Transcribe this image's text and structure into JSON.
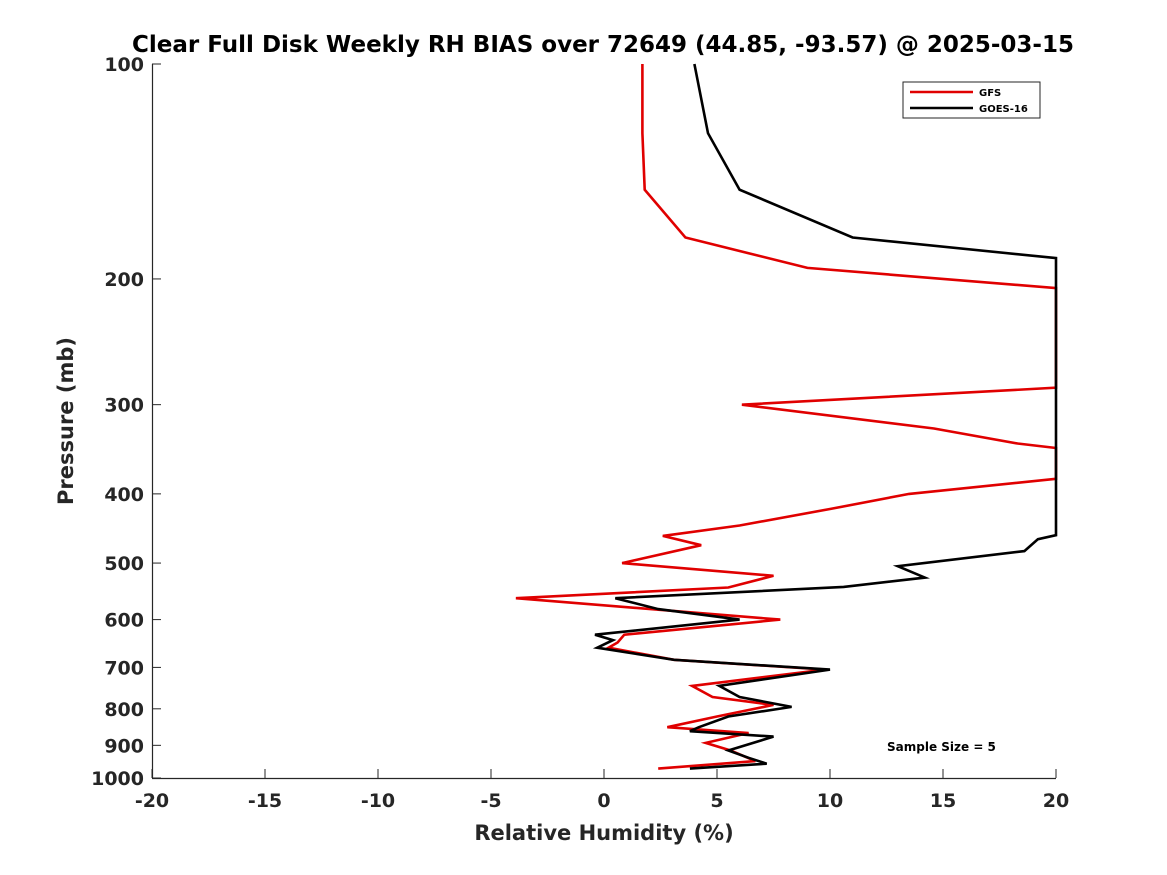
{
  "chart_data": {
    "type": "line",
    "title": "Clear Full Disk Weekly RH BIAS over 72649 (44.85, -93.57) @ 2025-03-15",
    "xlabel": "Relative Humidity (%)",
    "ylabel": "Pressure (mb)",
    "xlim": [
      -20,
      20
    ],
    "ylim": [
      1000,
      100
    ],
    "y_scale": "log",
    "grid": false,
    "legend_position": "top-right",
    "annotation": "Sample Size = 5",
    "x_ticks": [
      "-20",
      "-15",
      "-10",
      "-5",
      "0",
      "5",
      "10",
      "15",
      "20"
    ],
    "y_ticks": [
      "100",
      "200",
      "300",
      "400",
      "500",
      "600",
      "700",
      "800",
      "900",
      "1000"
    ],
    "series": [
      {
        "name": "GFS",
        "color": "#e00000",
        "points": [
          [
            1.7,
            100
          ],
          [
            1.7,
            125
          ],
          [
            1.8,
            150
          ],
          [
            3.6,
            175
          ],
          [
            9.0,
            193
          ],
          [
            20.0,
            206
          ],
          [
            20.0,
            284
          ],
          [
            6.1,
            300
          ],
          [
            14.6,
            324
          ],
          [
            18.3,
            340
          ],
          [
            20.0,
            345
          ],
          [
            20.0,
            381
          ],
          [
            13.5,
            400
          ],
          [
            10.0,
            420
          ],
          [
            6.0,
            443
          ],
          [
            2.6,
            458
          ],
          [
            4.3,
            472
          ],
          [
            0.8,
            500
          ],
          [
            7.5,
            521
          ],
          [
            5.5,
            541
          ],
          [
            -3.9,
            560
          ],
          [
            7.8,
            600
          ],
          [
            0.9,
            630
          ],
          [
            0.6,
            646
          ],
          [
            0.2,
            657
          ],
          [
            3.1,
            683
          ],
          [
            9.8,
            705
          ],
          [
            3.9,
            743
          ],
          [
            4.8,
            770
          ],
          [
            7.5,
            790
          ],
          [
            5.0,
            820
          ],
          [
            2.8,
            849
          ],
          [
            6.4,
            865
          ],
          [
            4.5,
            893
          ],
          [
            5.6,
            915
          ],
          [
            6.7,
            947
          ],
          [
            2.4,
            970
          ]
        ]
      },
      {
        "name": "GOES-16",
        "color": "#000000",
        "points": [
          [
            4.0,
            100
          ],
          [
            4.6,
            125
          ],
          [
            6.0,
            150
          ],
          [
            11.0,
            175
          ],
          [
            20.0,
            187
          ],
          [
            20.0,
            457
          ],
          [
            19.2,
            463
          ],
          [
            18.6,
            481
          ],
          [
            13.0,
            505
          ],
          [
            14.2,
            524
          ],
          [
            10.6,
            540
          ],
          [
            0.5,
            560
          ],
          [
            2.4,
            580
          ],
          [
            6.0,
            600
          ],
          [
            -0.4,
            630
          ],
          [
            0.4,
            641
          ],
          [
            -0.3,
            657
          ],
          [
            3.1,
            683
          ],
          [
            10.0,
            705
          ],
          [
            5.1,
            743
          ],
          [
            6.0,
            770
          ],
          [
            8.3,
            795
          ],
          [
            5.5,
            820
          ],
          [
            4.2,
            849
          ],
          [
            3.8,
            860
          ],
          [
            7.5,
            875
          ],
          [
            5.5,
            915
          ],
          [
            6.4,
            937
          ],
          [
            7.2,
            955
          ],
          [
            3.8,
            970
          ]
        ]
      }
    ]
  }
}
